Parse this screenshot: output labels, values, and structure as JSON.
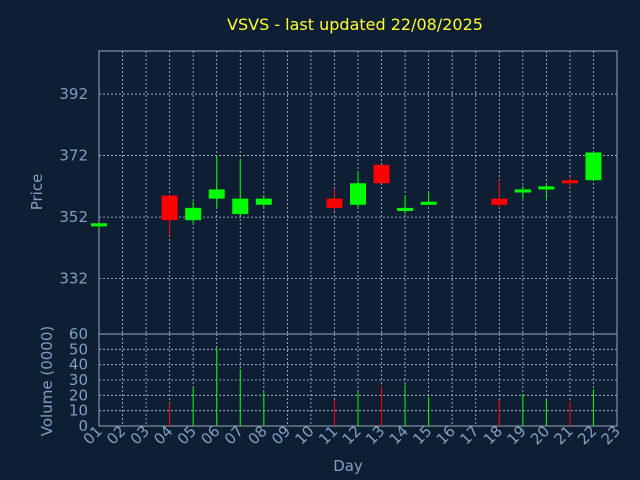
{
  "chart_data": {
    "type": "candlestick",
    "title": "VSVS - last updated 22/08/2025",
    "xlabel": "Day",
    "categories": [
      "01",
      "02",
      "03",
      "04",
      "05",
      "06",
      "07",
      "08",
      "09",
      "10",
      "11",
      "12",
      "13",
      "14",
      "15",
      "16",
      "17",
      "18",
      "19",
      "20",
      "21",
      "22",
      "23"
    ],
    "colors": {
      "up": "#00ff00",
      "down": "#ff0000",
      "background": "#0f1f33",
      "text": "#7f9fc6",
      "title": "#ffff33"
    },
    "price_panel": {
      "ylabel": "Price",
      "ylim": [
        314,
        406
      ],
      "yticks": [
        332,
        352,
        372,
        392
      ],
      "candles": [
        {
          "day": "01",
          "open": 349,
          "high": 350,
          "low": 348,
          "close": 350
        },
        {
          "day": "04",
          "open": 359,
          "high": 359,
          "low": 346,
          "close": 351
        },
        {
          "day": "05",
          "open": 351,
          "high": 357,
          "low": 350,
          "close": 355
        },
        {
          "day": "06",
          "open": 358,
          "high": 372,
          "low": 355,
          "close": 361
        },
        {
          "day": "07",
          "open": 353,
          "high": 371,
          "low": 352,
          "close": 358
        },
        {
          "day": "08",
          "open": 356,
          "high": 359,
          "low": 355,
          "close": 358
        },
        {
          "day": "11",
          "open": 358,
          "high": 361,
          "low": 354,
          "close": 355
        },
        {
          "day": "12",
          "open": 356,
          "high": 367,
          "low": 355,
          "close": 363
        },
        {
          "day": "13",
          "open": 369,
          "high": 369,
          "low": 363,
          "close": 363
        },
        {
          "day": "14",
          "open": 354,
          "high": 359,
          "low": 353,
          "close": 355
        },
        {
          "day": "15",
          "open": 356,
          "high": 360,
          "low": 356,
          "close": 357
        },
        {
          "day": "18",
          "open": 358,
          "high": 364,
          "low": 355,
          "close": 356
        },
        {
          "day": "19",
          "open": 360,
          "high": 362,
          "low": 358,
          "close": 361
        },
        {
          "day": "20",
          "open": 361,
          "high": 363,
          "low": 358,
          "close": 362
        },
        {
          "day": "21",
          "open": 364,
          "high": 365,
          "low": 362,
          "close": 363
        },
        {
          "day": "22",
          "open": 364,
          "high": 373,
          "low": 364,
          "close": 373
        }
      ]
    },
    "volume_panel": {
      "ylabel": "Volume (0000)",
      "ylim": [
        0,
        60
      ],
      "yticks": [
        0,
        10,
        20,
        30,
        40,
        50,
        60
      ],
      "bars": [
        {
          "day": "04",
          "value": 15,
          "direction": "down"
        },
        {
          "day": "05",
          "value": 25,
          "direction": "up"
        },
        {
          "day": "06",
          "value": 51,
          "direction": "up"
        },
        {
          "day": "07",
          "value": 37,
          "direction": "up"
        },
        {
          "day": "08",
          "value": 22,
          "direction": "up"
        },
        {
          "day": "11",
          "value": 17,
          "direction": "down"
        },
        {
          "day": "12",
          "value": 22,
          "direction": "up"
        },
        {
          "day": "13",
          "value": 26,
          "direction": "down"
        },
        {
          "day": "14",
          "value": 27,
          "direction": "up"
        },
        {
          "day": "15",
          "value": 19,
          "direction": "up"
        },
        {
          "day": "18",
          "value": 17,
          "direction": "down"
        },
        {
          "day": "19",
          "value": 21,
          "direction": "up"
        },
        {
          "day": "20",
          "value": 17,
          "direction": "up"
        },
        {
          "day": "21",
          "value": 16,
          "direction": "down"
        },
        {
          "day": "22",
          "value": 24,
          "direction": "up"
        }
      ]
    }
  }
}
